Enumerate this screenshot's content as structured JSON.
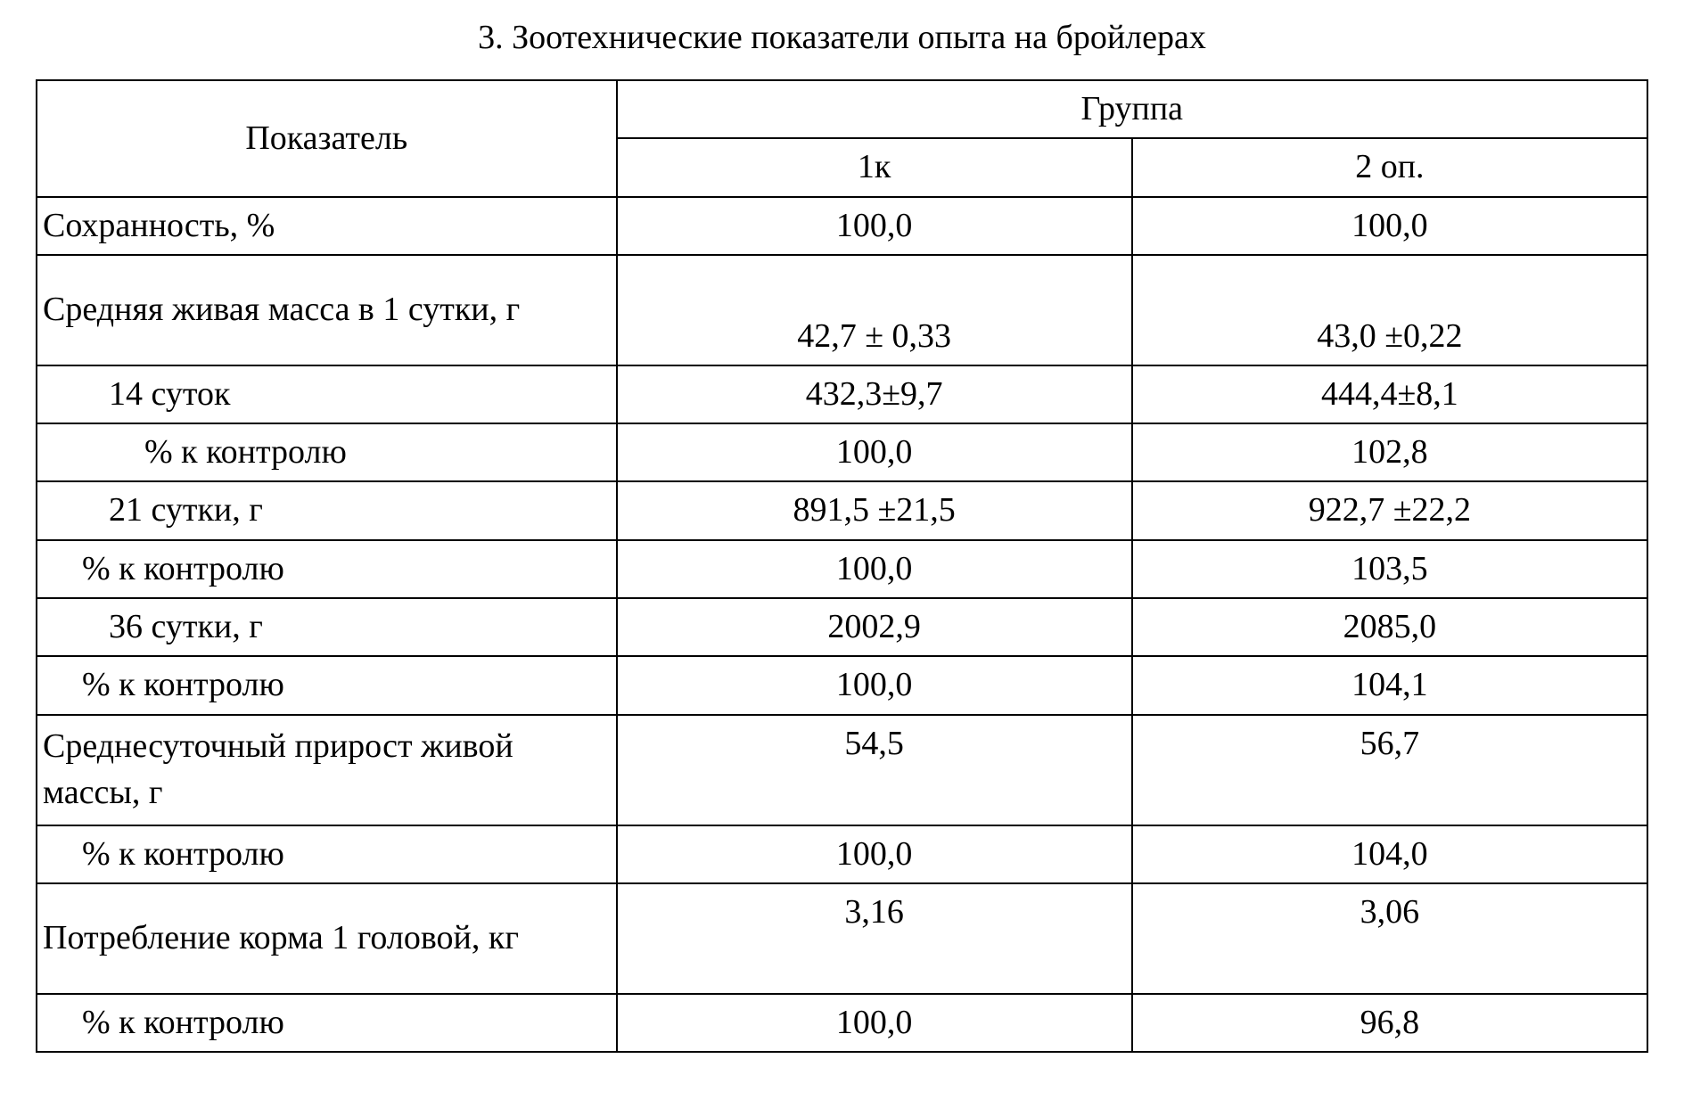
{
  "title": "3. Зоотехнические показатели опыта на бройлерах",
  "table": {
    "type": "table",
    "background_color": "#ffffff",
    "border_color": "#000000",
    "text_color": "#000000",
    "font_family": "Times New Roman",
    "font_size_pt": 28,
    "header": {
      "indicator": "Показатель",
      "group": "Группа",
      "col1": "1к",
      "col2": "2 оп."
    },
    "rows": [
      {
        "label": "Сохранность, %",
        "c1": "100,0",
        "c2": "100,0",
        "indent": "none",
        "tall": false,
        "valign": "middle"
      },
      {
        "label": "Средняя живая масса в 1 сутки, г",
        "c1": "42,7 ± 0,33",
        "c2": "43,0 ±0,22",
        "indent": "none",
        "tall": true,
        "valign": "bottom"
      },
      {
        "label": "14 суток",
        "c1": "432,3±9,7",
        "c2": "444,4±8,1",
        "indent": "indent-1",
        "tall": false,
        "valign": "middle"
      },
      {
        "label": "% к контролю",
        "c1": "100,0",
        "c2": "102,8",
        "indent": "indent-2",
        "tall": false,
        "valign": "middle"
      },
      {
        "label": "21 сутки, г",
        "c1": "891,5 ±21,5",
        "c2": "922,7 ±22,2",
        "indent": "indent-1",
        "tall": false,
        "valign": "middle"
      },
      {
        "label": "% к контролю",
        "c1": "100,0",
        "c2": "103,5",
        "indent": "indent-s",
        "tall": false,
        "valign": "middle"
      },
      {
        "label": "36 сутки, г",
        "c1": "2002,9",
        "c2": "2085,0",
        "indent": "indent-1",
        "tall": false,
        "valign": "middle"
      },
      {
        "label": "% к контролю",
        "c1": "100,0",
        "c2": "104,1",
        "indent": "indent-s",
        "tall": false,
        "valign": "middle"
      },
      {
        "label": "Среднесуточный прирост живой массы, г",
        "c1": "54,5",
        "c2": "56,7",
        "indent": "none",
        "tall": true,
        "valign": "top"
      },
      {
        "label": "% к контролю",
        "c1": "100,0",
        "c2": "104,0",
        "indent": "indent-s",
        "tall": false,
        "valign": "middle"
      },
      {
        "label": "Потребление корма 1 головой, кг",
        "c1": "3,16",
        "c2": "3,06",
        "indent": "none",
        "tall": true,
        "valign": "top"
      },
      {
        "label": "% к контролю",
        "c1": "100,0",
        "c2": "96,8",
        "indent": "indent-s",
        "tall": false,
        "valign": "middle"
      }
    ]
  }
}
